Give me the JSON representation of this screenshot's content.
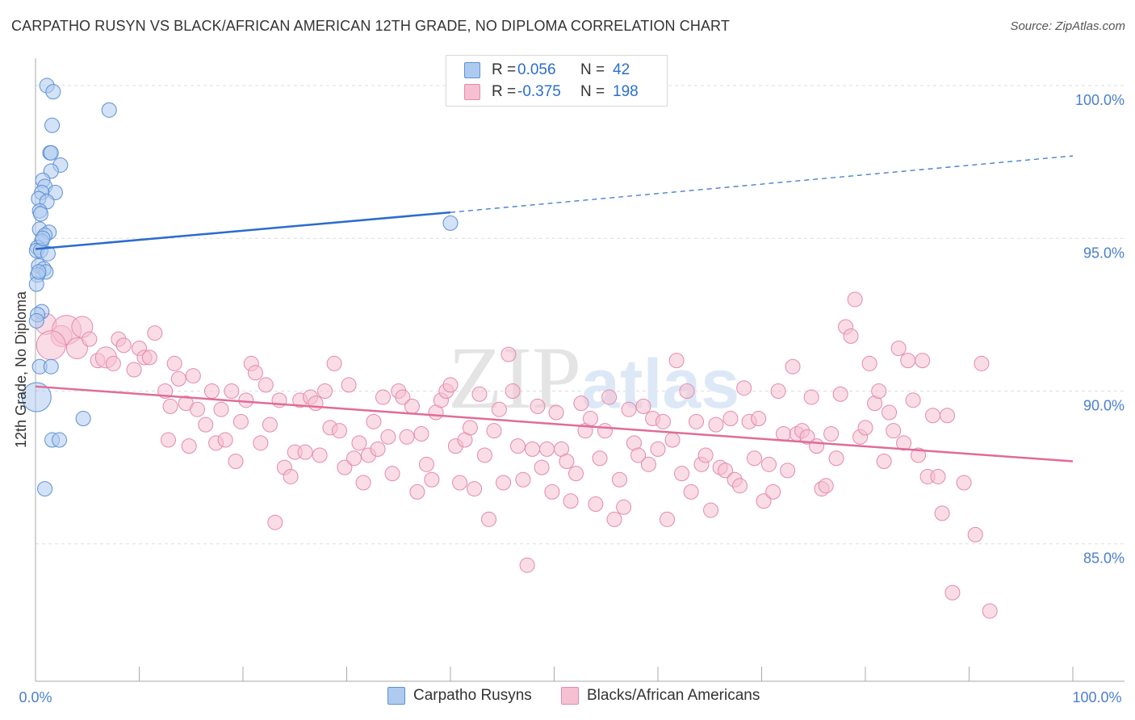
{
  "header": {
    "title": "CARPATHO RUSYN VS BLACK/AFRICAN AMERICAN 12TH GRADE, NO DIPLOMA CORRELATION CHART",
    "source": "Source: ZipAtlas.com"
  },
  "colors": {
    "blue_fill": "#aecbef",
    "blue_stroke": "#5b8fd6",
    "blue_line": "#2a6ccc",
    "pink_fill": "#f6c0d2",
    "pink_stroke": "#e38aaa",
    "pink_line": "#e06c98",
    "axis_text": "#4a7fd0",
    "grid": "#dddddd"
  },
  "legend": {
    "rows": [
      {
        "r_label": "R =",
        "r_value": "0.056",
        "n_label": "N =",
        "n_value": "42"
      },
      {
        "r_label": "R =",
        "r_value": "-0.375",
        "n_label": "N =",
        "n_value": "198"
      }
    ]
  },
  "bottom_legend": {
    "series1": "Carpatho Rusyns",
    "series2": "Blacks/African Americans"
  },
  "chart_data": {
    "type": "scatter",
    "title": "CARPATHO RUSYN VS BLACK/AFRICAN AMERICAN 12TH GRADE, NO DIPLOMA CORRELATION CHART",
    "xlabel": "",
    "ylabel": "12th Grade, No Diploma",
    "xlim": [
      0,
      100
    ],
    "ylim": [
      80.5,
      100.9
    ],
    "x_tick_labels": [
      "0.0%",
      "100.0%"
    ],
    "y_ticks": [
      85,
      90,
      95,
      100
    ],
    "y_tick_labels": [
      "85.0%",
      "90.0%",
      "95.0%",
      "100.0%"
    ],
    "watermark": {
      "part1": "ZIP",
      "part2": "atlas"
    },
    "series": [
      {
        "name": "Carpatho Rusyns",
        "r": 0.056,
        "n": 42,
        "trend": {
          "x0": 0,
          "y0": 94.65,
          "x1": 40,
          "y1": 95.85,
          "x_dash_end": 100,
          "y_dash_end": 97.7
        },
        "points": [
          [
            1.1,
            100.0,
            1
          ],
          [
            1.7,
            99.8,
            1
          ],
          [
            7.1,
            99.2,
            1
          ],
          [
            1.6,
            98.7,
            1
          ],
          [
            1.4,
            97.8,
            1
          ],
          [
            1.5,
            97.8,
            1
          ],
          [
            2.4,
            97.4,
            1
          ],
          [
            1.5,
            97.2,
            1
          ],
          [
            0.7,
            96.9,
            1
          ],
          [
            0.9,
            96.7,
            1
          ],
          [
            1.9,
            96.5,
            1
          ],
          [
            0.6,
            96.5,
            1
          ],
          [
            0.3,
            96.3,
            1
          ],
          [
            1.1,
            96.2,
            1
          ],
          [
            0.4,
            95.9,
            1
          ],
          [
            0.5,
            95.8,
            1
          ],
          [
            0.4,
            95.3,
            1
          ],
          [
            1.3,
            95.2,
            1
          ],
          [
            0.9,
            95.1,
            1
          ],
          [
            0.6,
            94.9,
            1
          ],
          [
            0.2,
            94.7,
            1
          ],
          [
            0.1,
            94.6,
            1
          ],
          [
            0.5,
            94.6,
            1
          ],
          [
            1.2,
            94.5,
            1
          ],
          [
            0.3,
            94.1,
            1
          ],
          [
            0.8,
            94.0,
            1
          ],
          [
            1.0,
            93.9,
            1
          ],
          [
            0.2,
            93.8,
            1
          ],
          [
            0.1,
            93.5,
            1
          ],
          [
            0.6,
            92.6,
            1
          ],
          [
            0.2,
            92.5,
            1
          ],
          [
            0.1,
            92.3,
            1
          ],
          [
            0.4,
            90.8,
            1
          ],
          [
            1.5,
            90.8,
            1
          ],
          [
            0.1,
            89.8,
            3
          ],
          [
            4.6,
            89.1,
            1
          ],
          [
            1.6,
            88.4,
            1
          ],
          [
            2.3,
            88.4,
            1
          ],
          [
            0.9,
            86.8,
            1
          ],
          [
            40.0,
            95.5,
            1
          ],
          [
            0.3,
            93.9,
            1
          ],
          [
            0.7,
            95.0,
            1
          ]
        ]
      },
      {
        "name": "Blacks/African Americans",
        "r": -0.375,
        "n": 198,
        "trend": {
          "x0": 0,
          "y0": 90.15,
          "x1": 100,
          "y1": 87.7
        },
        "points": [
          [
            1.0,
            92.2,
            2
          ],
          [
            2.5,
            91.8,
            2
          ],
          [
            3.0,
            92.0,
            3
          ],
          [
            1.5,
            91.5,
            3
          ],
          [
            4.5,
            92.1,
            2
          ],
          [
            4.0,
            91.4,
            2
          ],
          [
            5.2,
            91.7,
            1
          ],
          [
            6.0,
            91.0,
            1
          ],
          [
            6.8,
            91.1,
            2
          ],
          [
            7.5,
            90.9,
            1
          ],
          [
            8.0,
            91.7,
            1
          ],
          [
            8.5,
            91.5,
            1
          ],
          [
            9.5,
            90.7,
            1
          ],
          [
            10.0,
            91.4,
            1
          ],
          [
            10.5,
            91.1,
            1
          ],
          [
            11.0,
            91.1,
            1
          ],
          [
            11.5,
            91.9,
            1
          ],
          [
            12.5,
            90.0,
            1
          ],
          [
            12.8,
            88.4,
            1
          ],
          [
            13.0,
            89.5,
            1
          ],
          [
            13.4,
            90.9,
            1
          ],
          [
            13.8,
            90.4,
            1
          ],
          [
            14.5,
            89.6,
            1
          ],
          [
            14.8,
            88.2,
            1
          ],
          [
            15.2,
            90.5,
            1
          ],
          [
            15.6,
            89.4,
            1
          ],
          [
            16.4,
            88.9,
            1
          ],
          [
            17.0,
            90.0,
            1
          ],
          [
            17.4,
            88.3,
            1
          ],
          [
            17.9,
            89.4,
            1
          ],
          [
            18.3,
            88.4,
            1
          ],
          [
            18.9,
            90.0,
            1
          ],
          [
            19.3,
            87.7,
            1
          ],
          [
            19.8,
            89.0,
            1
          ],
          [
            20.3,
            89.7,
            1
          ],
          [
            20.8,
            90.9,
            1
          ],
          [
            21.2,
            90.6,
            1
          ],
          [
            21.7,
            88.3,
            1
          ],
          [
            22.2,
            90.2,
            1
          ],
          [
            22.6,
            88.9,
            1
          ],
          [
            23.1,
            85.7,
            1
          ],
          [
            23.5,
            89.7,
            1
          ],
          [
            24.0,
            87.5,
            1
          ],
          [
            24.6,
            87.2,
            1
          ],
          [
            25.0,
            88.0,
            1
          ],
          [
            25.5,
            89.7,
            1
          ],
          [
            26.0,
            88.0,
            1
          ],
          [
            26.5,
            89.8,
            1
          ],
          [
            27.0,
            89.6,
            1
          ],
          [
            27.4,
            87.9,
            1
          ],
          [
            27.9,
            90.0,
            1
          ],
          [
            28.4,
            88.8,
            1
          ],
          [
            28.8,
            90.9,
            1
          ],
          [
            29.3,
            88.7,
            1
          ],
          [
            29.8,
            87.5,
            1
          ],
          [
            30.2,
            90.2,
            1
          ],
          [
            30.7,
            87.8,
            1
          ],
          [
            31.2,
            88.3,
            1
          ],
          [
            31.6,
            87.0,
            1
          ],
          [
            32.1,
            87.9,
            1
          ],
          [
            32.6,
            89.0,
            1
          ],
          [
            33.0,
            88.1,
            1
          ],
          [
            33.5,
            89.8,
            1
          ],
          [
            34.0,
            88.5,
            1
          ],
          [
            34.4,
            87.3,
            1
          ],
          [
            35.0,
            90.0,
            1
          ],
          [
            35.4,
            89.8,
            1
          ],
          [
            35.8,
            88.5,
            1
          ],
          [
            36.3,
            89.5,
            1
          ],
          [
            36.8,
            86.7,
            1
          ],
          [
            37.2,
            88.6,
            1
          ],
          [
            37.7,
            87.6,
            1
          ],
          [
            38.2,
            87.1,
            1
          ],
          [
            38.6,
            89.3,
            1
          ],
          [
            39.1,
            89.7,
            1
          ],
          [
            39.6,
            90.0,
            1
          ],
          [
            40.0,
            90.2,
            1
          ],
          [
            40.5,
            88.2,
            1
          ],
          [
            40.9,
            87.0,
            1
          ],
          [
            41.4,
            88.4,
            1
          ],
          [
            41.9,
            88.8,
            1
          ],
          [
            42.3,
            86.8,
            1
          ],
          [
            42.8,
            89.9,
            1
          ],
          [
            43.3,
            87.9,
            1
          ],
          [
            43.7,
            85.8,
            1
          ],
          [
            44.2,
            88.7,
            1
          ],
          [
            44.7,
            89.4,
            1
          ],
          [
            45.1,
            87.0,
            1
          ],
          [
            45.6,
            91.2,
            1
          ],
          [
            46.0,
            90.0,
            1
          ],
          [
            46.5,
            88.2,
            1
          ],
          [
            47.0,
            87.1,
            1
          ],
          [
            47.4,
            84.3,
            1
          ],
          [
            47.9,
            88.1,
            1
          ],
          [
            48.4,
            89.5,
            1
          ],
          [
            48.8,
            87.5,
            1
          ],
          [
            49.3,
            88.1,
            1
          ],
          [
            49.8,
            86.7,
            1
          ],
          [
            50.2,
            89.3,
            1
          ],
          [
            50.7,
            88.1,
            1
          ],
          [
            51.2,
            87.7,
            1
          ],
          [
            51.6,
            86.4,
            1
          ],
          [
            52.1,
            87.3,
            1
          ],
          [
            52.6,
            89.6,
            1
          ],
          [
            53.0,
            88.7,
            1
          ],
          [
            53.5,
            89.1,
            1
          ],
          [
            54.0,
            86.3,
            1
          ],
          [
            54.4,
            87.8,
            1
          ],
          [
            54.9,
            88.7,
            1
          ],
          [
            55.3,
            89.8,
            1
          ],
          [
            55.8,
            85.8,
            1
          ],
          [
            56.3,
            87.1,
            1
          ],
          [
            56.7,
            86.2,
            1
          ],
          [
            57.2,
            89.4,
            1
          ],
          [
            57.7,
            88.3,
            1
          ],
          [
            58.1,
            87.9,
            1
          ],
          [
            58.6,
            89.5,
            1
          ],
          [
            59.1,
            87.6,
            1
          ],
          [
            59.5,
            89.1,
            1
          ],
          [
            60.0,
            88.1,
            1
          ],
          [
            60.5,
            89.0,
            1
          ],
          [
            60.9,
            85.8,
            1
          ],
          [
            61.4,
            88.4,
            1
          ],
          [
            61.8,
            91.0,
            1
          ],
          [
            62.3,
            87.3,
            1
          ],
          [
            62.8,
            90.0,
            1
          ],
          [
            63.2,
            86.7,
            1
          ],
          [
            63.7,
            89.0,
            1
          ],
          [
            64.2,
            87.6,
            1
          ],
          [
            64.6,
            87.9,
            1
          ],
          [
            65.1,
            86.1,
            1
          ],
          [
            65.6,
            88.9,
            1
          ],
          [
            66.0,
            87.5,
            1
          ],
          [
            66.5,
            87.4,
            1
          ],
          [
            67.0,
            89.1,
            1
          ],
          [
            67.4,
            87.1,
            1
          ],
          [
            67.9,
            86.9,
            1
          ],
          [
            68.3,
            90.1,
            1
          ],
          [
            68.8,
            89.0,
            1
          ],
          [
            69.3,
            87.8,
            1
          ],
          [
            69.7,
            89.1,
            1
          ],
          [
            70.2,
            86.4,
            1
          ],
          [
            70.7,
            87.6,
            1
          ],
          [
            71.1,
            86.7,
            1
          ],
          [
            71.6,
            90.0,
            1
          ],
          [
            72.1,
            88.6,
            1
          ],
          [
            72.5,
            87.4,
            1
          ],
          [
            73.0,
            90.8,
            1
          ],
          [
            73.4,
            88.6,
            1
          ],
          [
            73.9,
            88.7,
            1
          ],
          [
            74.4,
            88.5,
            1
          ],
          [
            74.8,
            89.8,
            1
          ],
          [
            75.3,
            88.2,
            1
          ],
          [
            75.8,
            86.8,
            1
          ],
          [
            76.2,
            86.9,
            1
          ],
          [
            76.7,
            88.6,
            1
          ],
          [
            77.2,
            87.8,
            1
          ],
          [
            77.6,
            89.9,
            1
          ],
          [
            78.1,
            92.1,
            1
          ],
          [
            78.6,
            91.8,
            1
          ],
          [
            79.0,
            93.0,
            1
          ],
          [
            79.5,
            88.5,
            1
          ],
          [
            80.0,
            88.8,
            1
          ],
          [
            80.4,
            90.9,
            1
          ],
          [
            80.9,
            89.6,
            1
          ],
          [
            81.3,
            90.0,
            1
          ],
          [
            81.8,
            87.7,
            1
          ],
          [
            82.3,
            89.3,
            1
          ],
          [
            82.7,
            88.7,
            1
          ],
          [
            83.2,
            91.4,
            1
          ],
          [
            83.7,
            88.3,
            1
          ],
          [
            84.1,
            91.0,
            1
          ],
          [
            84.6,
            89.7,
            1
          ],
          [
            85.1,
            87.9,
            1
          ],
          [
            85.5,
            91.0,
            1
          ],
          [
            86.0,
            87.2,
            1
          ],
          [
            86.5,
            89.2,
            1
          ],
          [
            87.0,
            87.2,
            1
          ],
          [
            87.4,
            86.0,
            1
          ],
          [
            87.9,
            89.2,
            1
          ],
          [
            88.4,
            83.4,
            1
          ],
          [
            89.5,
            87.0,
            1
          ],
          [
            90.6,
            85.3,
            1
          ],
          [
            91.2,
            90.9,
            1
          ],
          [
            92.0,
            82.8,
            1
          ]
        ]
      }
    ]
  }
}
